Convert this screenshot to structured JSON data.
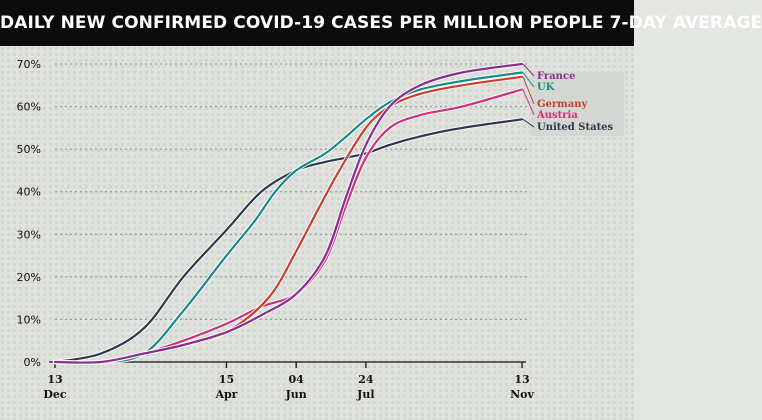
{
  "title": "DAILY NEW CONFIRMED COVID-19 CASES PER MILLION PEOPLE 7-DAY AVERAGE",
  "chart_data": {
    "type": "line",
    "title": "DAILY NEW CONFIRMED COVID-19 CASES PER MILLION PEOPLE 7-DAY AVERAGE",
    "xlabel": "",
    "ylabel": "",
    "ylim": [
      0,
      70
    ],
    "y_ticks": [
      0,
      10,
      20,
      30,
      40,
      50,
      60,
      70
    ],
    "y_tick_labels": [
      "0%",
      "10%",
      "20%",
      "30%",
      "40%",
      "50%",
      "60%",
      "70%"
    ],
    "x_ticks": [
      {
        "line1": "13",
        "line2": "Dec",
        "date": "2020-12-13"
      },
      {
        "line1": "15",
        "line2": "Apr",
        "date": "2021-04-15"
      },
      {
        "line1": "04",
        "line2": "Jun",
        "date": "2021-06-04"
      },
      {
        "line1": "24",
        "line2": "Jul",
        "date": "2021-07-24"
      },
      {
        "line1": "13",
        "line2": "Nov",
        "date": "2021-11-13"
      }
    ],
    "grid": true,
    "legend_position": "right",
    "series": [
      {
        "name": "France",
        "color": "#8a2f8f",
        "x": [
          "2020-12-13",
          "2021-01-15",
          "2021-02-15",
          "2021-03-15",
          "2021-04-15",
          "2021-05-10",
          "2021-06-04",
          "2021-06-25",
          "2021-07-10",
          "2021-07-24",
          "2021-08-10",
          "2021-09-01",
          "2021-10-01",
          "2021-11-13"
        ],
        "y": [
          0,
          0,
          2,
          4,
          7,
          11,
          16,
          25,
          39,
          51,
          60,
          65,
          68,
          70
        ]
      },
      {
        "name": "UK",
        "color": "#1a8a84",
        "x": [
          "2020-12-13",
          "2021-01-15",
          "2021-02-15",
          "2021-03-15",
          "2021-04-15",
          "2021-05-05",
          "2021-05-20",
          "2021-06-04",
          "2021-06-25",
          "2021-07-10",
          "2021-07-24",
          "2021-08-10",
          "2021-09-01",
          "2021-10-01",
          "2021-11-13"
        ],
        "y": [
          0,
          0,
          2,
          12,
          25,
          33,
          40,
          45,
          49,
          53,
          57,
          61,
          64,
          66,
          68
        ]
      },
      {
        "name": "Germany",
        "color": "#c8402a",
        "x": [
          "2020-12-13",
          "2021-01-15",
          "2021-02-15",
          "2021-03-15",
          "2021-04-15",
          "2021-05-15",
          "2021-06-04",
          "2021-06-20",
          "2021-07-05",
          "2021-07-24",
          "2021-08-10",
          "2021-09-01",
          "2021-10-01",
          "2021-11-13"
        ],
        "y": [
          0,
          0,
          2,
          4,
          7,
          15,
          26,
          36,
          45,
          55,
          60,
          63,
          65,
          67
        ]
      },
      {
        "name": "Austria",
        "color": "#d0307a",
        "x": [
          "2020-12-13",
          "2021-01-15",
          "2021-02-15",
          "2021-03-15",
          "2021-04-15",
          "2021-05-10",
          "2021-06-04",
          "2021-06-25",
          "2021-07-10",
          "2021-07-24",
          "2021-08-10",
          "2021-09-01",
          "2021-10-01",
          "2021-11-13"
        ],
        "y": [
          0,
          0,
          2,
          5,
          9,
          13,
          16,
          24,
          37,
          48,
          55,
          58,
          60,
          64
        ]
      },
      {
        "name": "United States",
        "color": "#2d3a4c",
        "x": [
          "2020-12-13",
          "2021-01-15",
          "2021-02-15",
          "2021-03-15",
          "2021-04-15",
          "2021-05-10",
          "2021-06-04",
          "2021-06-25",
          "2021-07-10",
          "2021-07-24",
          "2021-08-10",
          "2021-09-01",
          "2021-10-01",
          "2021-11-13"
        ],
        "y": [
          0,
          2,
          8,
          20,
          31,
          40,
          45,
          47,
          48,
          49,
          51,
          53,
          55,
          57
        ]
      }
    ]
  }
}
